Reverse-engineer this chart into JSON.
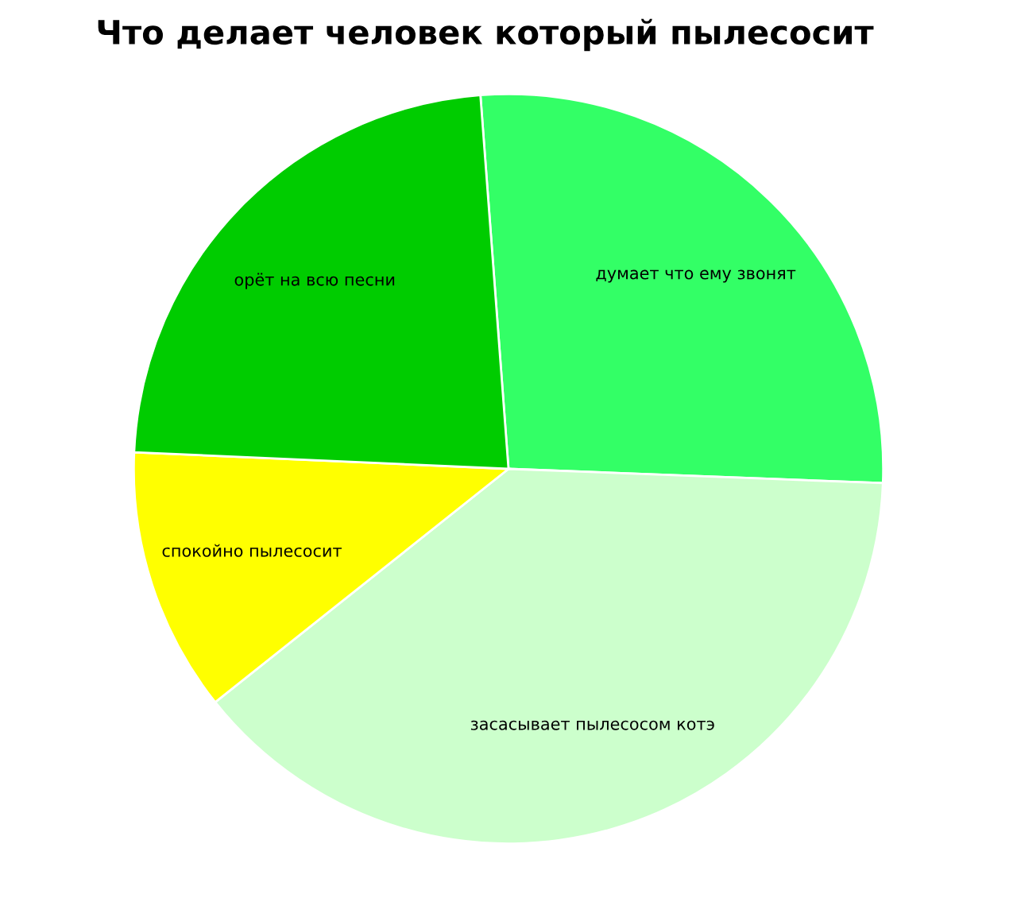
{
  "chart_data": {
    "type": "pie",
    "title": "Что делает человек который пылесосит",
    "categories": [
      "думает что ему звонят",
      "засасывает пылесосом котэ",
      "спокойно пылесосит",
      "орёт на всю песни"
    ],
    "values": [
      26.8,
      38.7,
      11.4,
      23.1
    ],
    "colors": [
      "#33ff66",
      "#ccffcc",
      "#ffff00",
      "#00cc00"
    ],
    "legend": false
  }
}
